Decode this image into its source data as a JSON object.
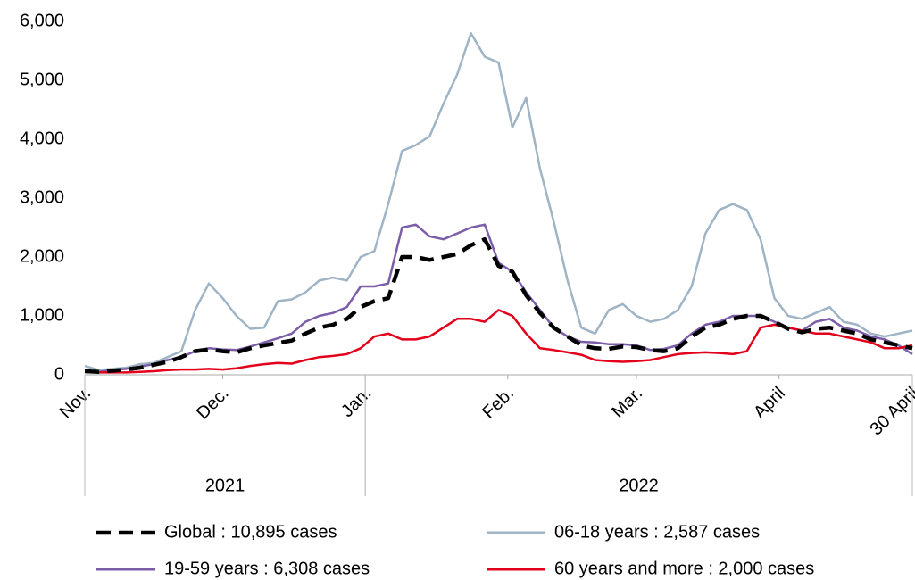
{
  "chart_data": {
    "type": "line",
    "x": [
      0,
      3,
      6,
      9,
      12,
      15,
      18,
      21,
      24,
      27,
      30,
      33,
      36,
      39,
      42,
      45,
      48,
      51,
      54,
      57,
      60,
      63,
      66,
      69,
      72,
      75,
      78,
      81,
      84,
      87,
      90,
      93,
      96,
      99,
      102,
      105,
      108,
      111,
      114,
      117,
      120,
      123,
      126,
      129,
      132,
      135,
      138,
      141,
      144,
      147,
      150,
      153,
      156,
      159,
      162,
      165,
      168,
      171,
      174,
      177,
      180
    ],
    "xlim": [
      0,
      180
    ],
    "xticks": [
      {
        "value": 0,
        "label": "Nov."
      },
      {
        "value": 30,
        "label": "Dec."
      },
      {
        "value": 61,
        "label": "Jan."
      },
      {
        "value": 92,
        "label": "Feb."
      },
      {
        "value": 120,
        "label": "Mar."
      },
      {
        "value": 151,
        "label": "April"
      },
      {
        "value": 180,
        "label": "30 April"
      }
    ],
    "year_groups": [
      {
        "label": "2021",
        "from": 0,
        "to": 61
      },
      {
        "label": "2022",
        "from": 61,
        "to": 180
      }
    ],
    "ylim": [
      0,
      6000
    ],
    "yticks": [
      0,
      {
        "value": 1000,
        "label": "1,000"
      },
      {
        "value": 2000,
        "label": "2,000"
      },
      {
        "value": 3000,
        "label": "3,000"
      },
      {
        "value": 4000,
        "label": "4,000"
      },
      {
        "value": 5000,
        "label": "5,000"
      },
      {
        "value": 6000,
        "label": "6,000"
      }
    ],
    "grid": false,
    "series": [
      {
        "name": "Global : 10,895 cases",
        "color": "#000000",
        "dashed": true,
        "values": [
          60,
          50,
          70,
          90,
          120,
          170,
          220,
          300,
          400,
          430,
          400,
          380,
          450,
          500,
          540,
          580,
          700,
          800,
          850,
          950,
          1150,
          1250,
          1300,
          2000,
          2000,
          1950,
          2000,
          2050,
          2200,
          2300,
          1850,
          1750,
          1350,
          1050,
          800,
          650,
          500,
          450,
          440,
          480,
          470,
          420,
          400,
          450,
          650,
          800,
          850,
          950,
          1000,
          1000,
          900,
          780,
          720,
          780,
          800,
          750,
          700,
          600,
          550,
          500,
          450
        ]
      },
      {
        "name": "06-18 years : 2,587 cases",
        "color": "#9fb4c5",
        "values": [
          150,
          80,
          100,
          120,
          180,
          200,
          300,
          400,
          1100,
          1550,
          1300,
          1000,
          780,
          800,
          1250,
          1280,
          1400,
          1600,
          1650,
          1600,
          2000,
          2100,
          2900,
          3800,
          3900,
          4050,
          4600,
          5100,
          5800,
          5400,
          5300,
          4200,
          4700,
          3500,
          2600,
          1600,
          800,
          700,
          1100,
          1200,
          1000,
          900,
          950,
          1100,
          1500,
          2400,
          2800,
          2900,
          2800,
          2300,
          1300,
          1000,
          950,
          1050,
          1150,
          900,
          850,
          700,
          650,
          700,
          750
        ]
      },
      {
        "name": "19-59 years : 6,308 cases",
        "color": "#7b5ea7",
        "values": [
          60,
          50,
          80,
          100,
          140,
          180,
          250,
          300,
          400,
          450,
          430,
          420,
          480,
          550,
          620,
          700,
          900,
          1000,
          1050,
          1150,
          1500,
          1500,
          1550,
          2500,
          2550,
          2350,
          2300,
          2400,
          2500,
          2550,
          1900,
          1750,
          1400,
          1100,
          800,
          650,
          560,
          550,
          520,
          520,
          500,
          420,
          440,
          500,
          700,
          850,
          900,
          1000,
          1000,
          1000,
          900,
          800,
          750,
          900,
          950,
          800,
          750,
          650,
          600,
          500,
          350
        ]
      },
      {
        "name": "60 years and more : 2,000 cases",
        "color": "#e3001b",
        "values": [
          50,
          40,
          40,
          40,
          50,
          60,
          80,
          90,
          90,
          100,
          90,
          110,
          150,
          180,
          200,
          190,
          250,
          300,
          320,
          350,
          450,
          650,
          700,
          600,
          600,
          650,
          800,
          950,
          950,
          900,
          1100,
          1000,
          700,
          450,
          420,
          380,
          340,
          250,
          230,
          220,
          230,
          250,
          300,
          350,
          370,
          380,
          370,
          350,
          400,
          800,
          850,
          800,
          750,
          700,
          700,
          650,
          600,
          550,
          450,
          450,
          500
        ]
      }
    ]
  }
}
